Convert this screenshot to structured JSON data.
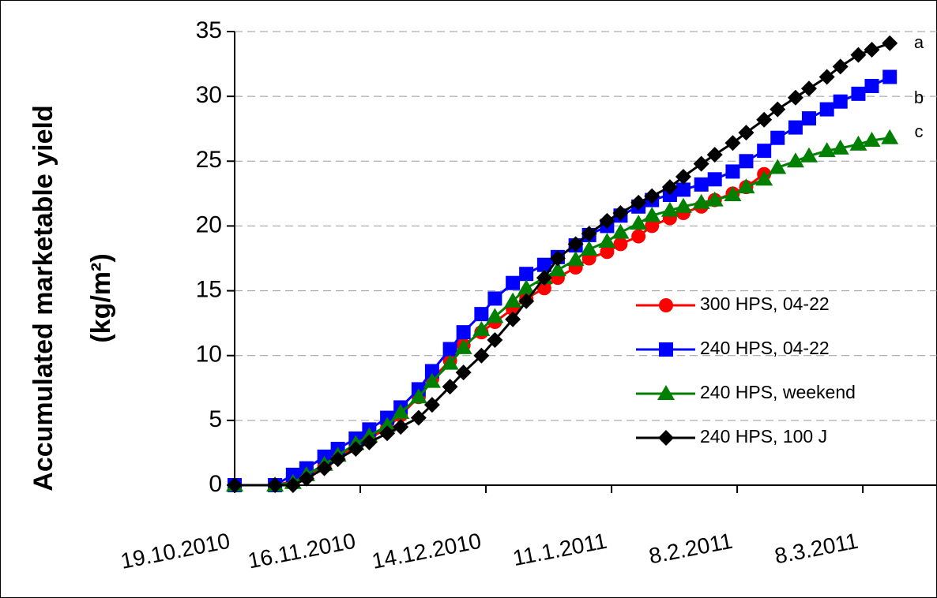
{
  "chart_data": {
    "type": "line",
    "y_label": [
      "Accumulated marketable yield",
      "(kg/m²)"
    ],
    "annotations": [
      "a",
      "b",
      "c"
    ],
    "x": [
      "2010-10-19",
      "2010-10-28",
      "2010-11-01",
      "2010-11-04",
      "2010-11-08",
      "2010-11-11",
      "2010-11-15",
      "2010-11-18",
      "2010-11-22",
      "2010-11-25",
      "2010-11-29",
      "2010-12-02",
      "2010-12-06",
      "2010-12-09",
      "2010-12-13",
      "2010-12-16",
      "2010-12-20",
      "2010-12-23",
      "2010-12-27",
      "2010-12-30",
      "2011-01-03",
      "2011-01-06",
      "2011-01-10",
      "2011-01-13",
      "2011-01-17",
      "2011-01-20",
      "2011-01-24",
      "2011-01-27",
      "2011-01-31",
      "2011-02-03",
      "2011-02-07",
      "2011-02-10",
      "2011-02-14",
      "2011-02-17",
      "2011-02-21",
      "2011-02-24",
      "2011-02-28",
      "2011-03-03",
      "2011-03-07",
      "2011-03-10",
      "2011-03-14"
    ],
    "series": [
      {
        "name": "300 HPS, 04-22",
        "color": "#ff0000",
        "marker": "circle",
        "values": [
          0,
          0,
          0.3,
          0.7,
          1.5,
          2.2,
          3.0,
          3.6,
          4.4,
          5.4,
          6.8,
          8.2,
          9.6,
          10.8,
          11.8,
          12.6,
          13.6,
          14.4,
          15.2,
          16.0,
          16.8,
          17.5,
          18.0,
          18.6,
          19.2,
          20.0,
          20.6,
          21.0,
          21.5,
          22.0,
          22.5,
          23.0,
          24.0,
          null,
          null,
          null,
          null,
          null,
          null,
          null,
          null
        ]
      },
      {
        "name": "240 HPS, 04-22",
        "color": "#0000ff",
        "marker": "square",
        "values": [
          0,
          0,
          0.8,
          1.3,
          2.2,
          2.8,
          3.6,
          4.3,
          5.2,
          6.0,
          7.4,
          8.8,
          10.5,
          11.8,
          13.2,
          14.4,
          15.6,
          16.3,
          17.0,
          17.6,
          18.5,
          19.3,
          20.0,
          20.8,
          21.5,
          22.0,
          22.4,
          22.8,
          23.2,
          23.6,
          24.2,
          25.0,
          25.8,
          26.8,
          27.6,
          28.3,
          29.0,
          29.6,
          30.2,
          30.8,
          31.5
        ]
      },
      {
        "name": "240 HPS, weekend",
        "color": "#008000",
        "marker": "triangle",
        "values": [
          0,
          0,
          0.2,
          0.8,
          1.6,
          2.3,
          3.2,
          3.8,
          4.6,
          5.6,
          6.8,
          8.0,
          9.4,
          10.6,
          12.0,
          13.0,
          14.2,
          15.2,
          16.0,
          16.6,
          17.4,
          18.2,
          18.8,
          19.5,
          20.2,
          20.8,
          21.2,
          21.5,
          21.8,
          22.0,
          22.4,
          23.0,
          23.6,
          24.5,
          25.0,
          25.4,
          25.8,
          26.0,
          26.3,
          26.6,
          26.8
        ]
      },
      {
        "name": "240 HPS, 100 J",
        "color": "#000000",
        "marker": "diamond",
        "values": [
          0,
          0,
          0,
          0.5,
          1.3,
          2.0,
          2.8,
          3.3,
          4.0,
          4.5,
          5.2,
          6.2,
          7.6,
          8.7,
          10.0,
          11.2,
          12.8,
          14.2,
          16.0,
          17.5,
          18.6,
          19.4,
          20.4,
          21.0,
          21.8,
          22.3,
          23.0,
          23.8,
          24.8,
          25.5,
          26.4,
          27.2,
          28.2,
          29.0,
          29.9,
          30.6,
          31.5,
          32.3,
          33.2,
          33.6,
          34.1
        ]
      }
    ],
    "xlim": [
      "2010-10-19",
      "2011-03-24"
    ],
    "xticks": [
      {
        "value": "2010-10-19",
        "label": "19.10.2010"
      },
      {
        "value": "2010-11-16",
        "label": "16.11.2010"
      },
      {
        "value": "2010-12-14",
        "label": "14.12.2010"
      },
      {
        "value": "2011-01-11",
        "label": "11.1.2011"
      },
      {
        "value": "2011-02-08",
        "label": "8.2.2011"
      },
      {
        "value": "2011-03-08",
        "label": "8.3.2011"
      }
    ],
    "ylim": [
      0,
      35
    ],
    "yticks": [
      0,
      5,
      10,
      15,
      20,
      25,
      30,
      35
    ],
    "grid": true,
    "legend": "right"
  }
}
